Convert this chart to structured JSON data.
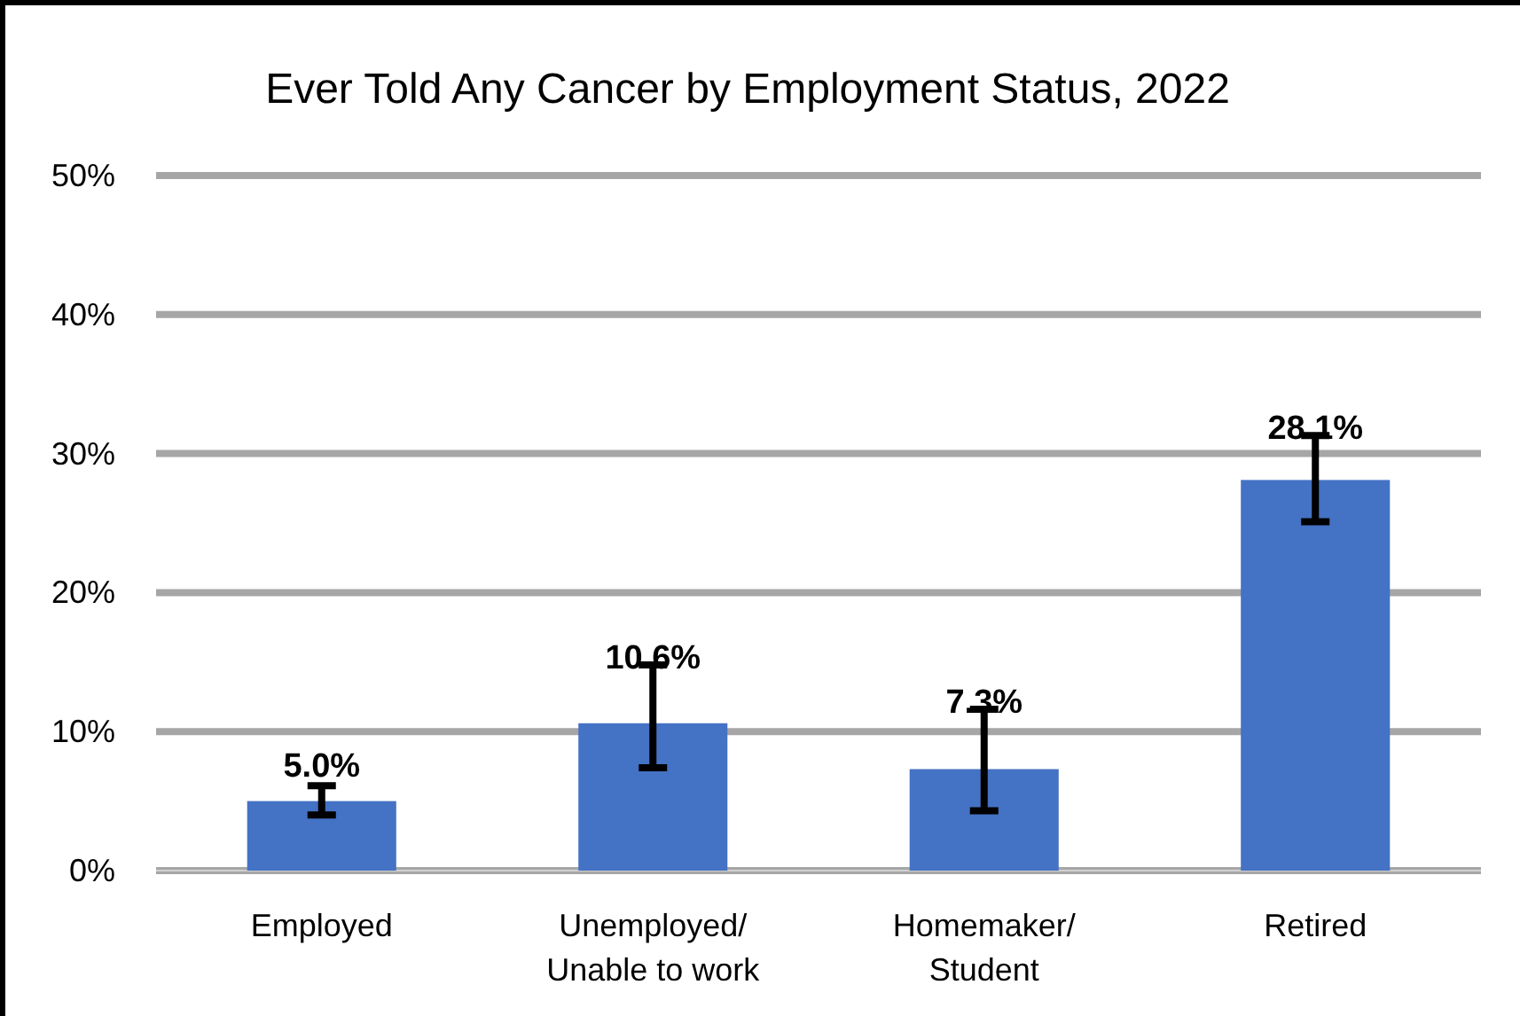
{
  "chart_data": {
    "type": "bar",
    "title": "Ever Told Any Cancer by Employment Status, 2022",
    "categories": [
      "Employed",
      "Unemployed/ Unable to work",
      "Homemaker/ Student",
      "Retired"
    ],
    "values": [
      5.0,
      10.6,
      7.3,
      28.1
    ],
    "value_labels": [
      "5.0%",
      "10.6%",
      "7.3%",
      "28.1%"
    ],
    "errors": [
      [
        4.0,
        6.1
      ],
      [
        7.4,
        14.8
      ],
      [
        4.3,
        11.6
      ],
      [
        25.1,
        31.3
      ]
    ],
    "color": "#4472c4",
    "ylim": [
      0,
      50
    ],
    "yticks": [
      {
        "value": 0,
        "label": "0%"
      },
      {
        "value": 10,
        "label": "10%"
      },
      {
        "value": 20,
        "label": "20%"
      },
      {
        "value": 30,
        "label": "30%"
      },
      {
        "value": 40,
        "label": "40%"
      },
      {
        "value": 50,
        "label": "50%"
      }
    ],
    "grid": "y"
  }
}
